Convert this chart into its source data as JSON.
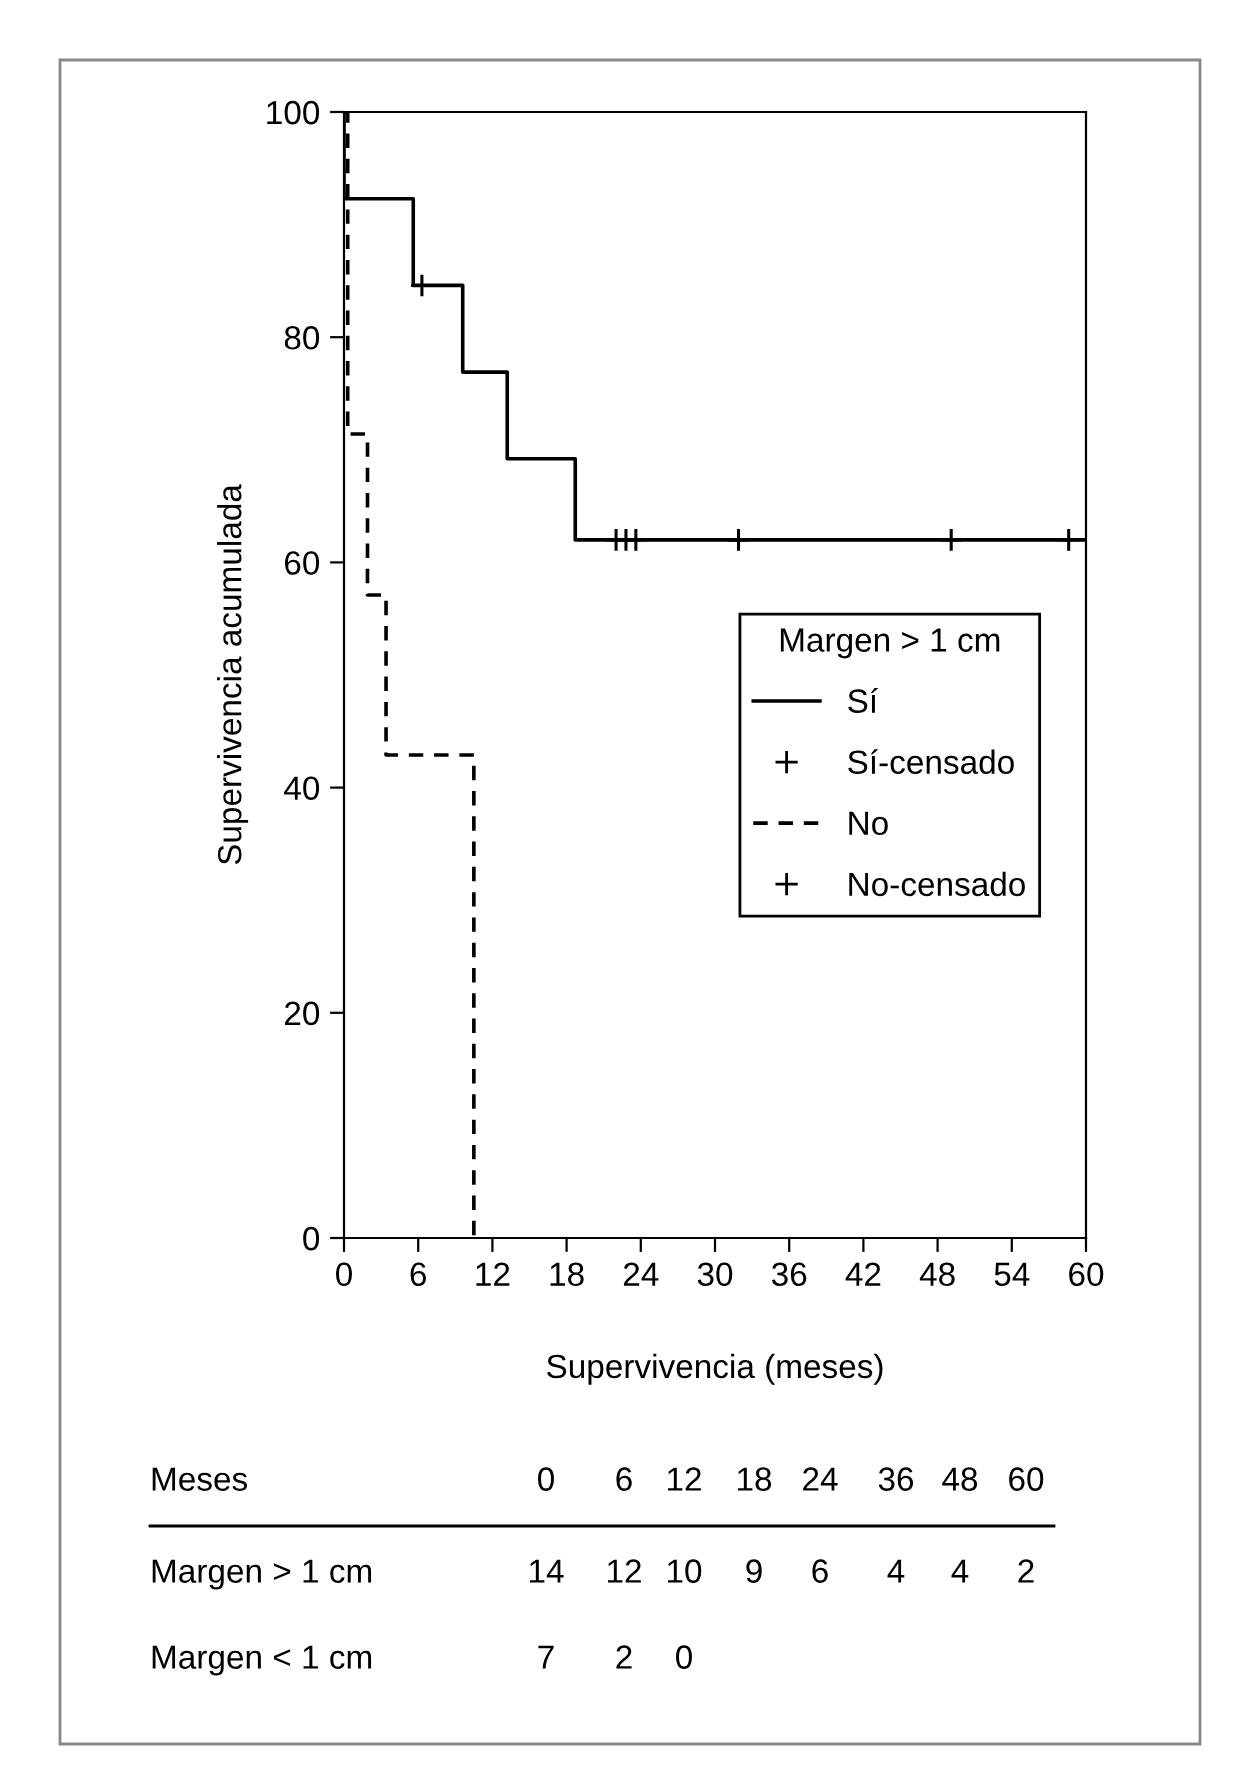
{
  "chart_data": {
    "type": "step",
    "xlabel": "Supervivencia (meses)",
    "ylabel": "Supervivencia acumulada",
    "legend_title": "Margen > 1 cm",
    "legend": "right",
    "grid": false,
    "xlim": [
      0,
      60
    ],
    "xticks": [
      0,
      6,
      12,
      18,
      24,
      30,
      36,
      42,
      48,
      54,
      60
    ],
    "ylim": [
      0,
      100
    ],
    "yticks": [
      0,
      20,
      40,
      60,
      80,
      100
    ],
    "series": [
      {
        "name": "Sí",
        "color": "#000000",
        "line_style": "solid",
        "x": [
          0,
          0,
          5.6,
          9.6,
          13.2,
          18.7,
          60
        ],
        "values": [
          100,
          92.3,
          84.6,
          76.9,
          69.2,
          62,
          62
        ]
      },
      {
        "name": "Sí-censado",
        "type": "scatter",
        "color": "#000000",
        "marker": "cross",
        "x": [
          6.3,
          22.0,
          22.8,
          23.6,
          31.9,
          49.1,
          58.6
        ],
        "values": [
          84.6,
          62,
          62,
          62,
          62,
          62,
          62
        ]
      },
      {
        "name": "No",
        "color": "#000000",
        "line_style": "dashed",
        "x": [
          0,
          0.3,
          1.9,
          3.4,
          10.5
        ],
        "values": [
          100,
          71.4,
          57.1,
          42.9,
          0
        ]
      },
      {
        "name": "No-censado",
        "type": "scatter",
        "color": "#000000",
        "marker": "cross"
      }
    ],
    "annotations": [
      "Meses\t0\t6\t12\t18\t24\t36\t48\t60",
      "Margen > 1 cm\t14\t12\t10\t9\t6\t4\t4\t2",
      "Margen < 1 cm\t7\t2\t0"
    ]
  }
}
